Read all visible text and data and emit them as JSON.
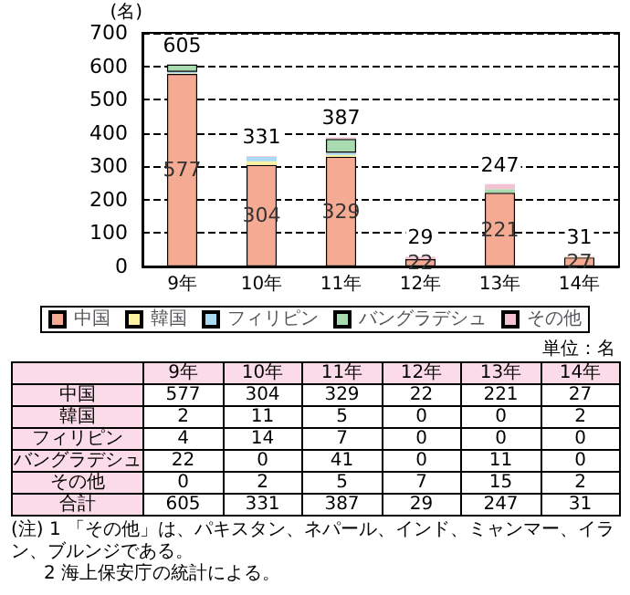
{
  "chart_data": {
    "type": "bar",
    "stacked": true,
    "ylabel": "(名)",
    "categories": [
      "9年",
      "10年",
      "11年",
      "12年",
      "13年",
      "14年"
    ],
    "series": [
      {
        "name": "中国",
        "color": "#f5ab93",
        "values": [
          577,
          304,
          329,
          22,
          221,
          27
        ],
        "value_labels": [
          "577",
          "304",
          "329",
          "22",
          "221",
          "27"
        ]
      },
      {
        "name": "韓国",
        "color": "#fff2a0",
        "values": [
          2,
          11,
          5,
          0,
          0,
          2
        ],
        "value_labels": [
          "2",
          "11",
          "5",
          "0",
          "0",
          "2"
        ]
      },
      {
        "name": "フィリピン",
        "color": "#a9daf2",
        "values": [
          4,
          14,
          7,
          0,
          0,
          0
        ],
        "value_labels": [
          "4",
          "14",
          "7",
          "0",
          "0",
          "0"
        ]
      },
      {
        "name": "バングラデシュ",
        "color": "#a8dbb0",
        "values": [
          22,
          0,
          41,
          0,
          11,
          0
        ],
        "value_labels": [
          "22",
          "0",
          "41",
          "0",
          "11",
          "0"
        ]
      },
      {
        "name": "その他",
        "color": "#f3c3d3",
        "values": [
          0,
          2,
          5,
          7,
          15,
          2
        ],
        "value_labels": [
          "0",
          "2",
          "5",
          "7",
          "15",
          "2"
        ]
      }
    ],
    "totals": [
      "605",
      "331",
      "387",
      "29",
      "247",
      "31"
    ],
    "ylim": [
      0,
      700
    ],
    "yticks": [
      0,
      100,
      200,
      300,
      400,
      500,
      600,
      700
    ],
    "grid": "y",
    "legend": "bottom",
    "annotations": [
      "単位：名",
      "合計",
      "(注) 1 「その他」は、パキスタン、ネパール、インド、ミャンマー、イラン、ブルンジである。",
      "2 海上保安庁の統計による。"
    ]
  }
}
